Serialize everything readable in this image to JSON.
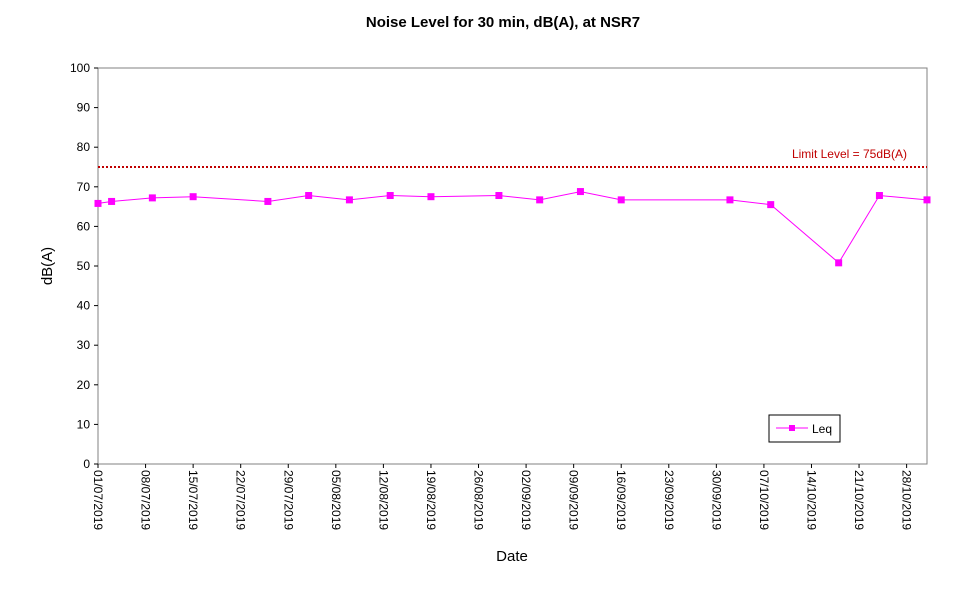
{
  "chart_data": {
    "type": "line",
    "title": "Noise Level for 30 min, dB(A), at NSR7",
    "xlabel": "Date",
    "ylabel": "dB(A)",
    "ylim": [
      0,
      100
    ],
    "yticks": [
      0,
      10,
      20,
      30,
      40,
      50,
      60,
      70,
      80,
      90,
      100
    ],
    "xlim": [
      "01/07/2019",
      "31/10/2019"
    ],
    "xticks": [
      "01/07/2019",
      "08/07/2019",
      "15/07/2019",
      "22/07/2019",
      "29/07/2019",
      "05/08/2019",
      "12/08/2019",
      "19/08/2019",
      "26/08/2019",
      "02/09/2019",
      "09/09/2019",
      "16/09/2019",
      "23/09/2019",
      "30/09/2019",
      "07/10/2019",
      "14/10/2019",
      "21/10/2019",
      "28/10/2019"
    ],
    "grid": false,
    "legend_position": "bottom-right",
    "series": [
      {
        "name": "Leq",
        "color": "#ff00ff",
        "marker": "square",
        "points": [
          {
            "x": "01/07/2019",
            "y": 65.8
          },
          {
            "x": "03/07/2019",
            "y": 66.3
          },
          {
            "x": "09/07/2019",
            "y": 67.2
          },
          {
            "x": "15/07/2019",
            "y": 67.5
          },
          {
            "x": "26/07/2019",
            "y": 66.3
          },
          {
            "x": "01/08/2019",
            "y": 67.8
          },
          {
            "x": "07/08/2019",
            "y": 66.7
          },
          {
            "x": "13/08/2019",
            "y": 67.8
          },
          {
            "x": "19/08/2019",
            "y": 67.5
          },
          {
            "x": "29/08/2019",
            "y": 67.8
          },
          {
            "x": "04/09/2019",
            "y": 66.7
          },
          {
            "x": "10/09/2019",
            "y": 68.8
          },
          {
            "x": "16/09/2019",
            "y": 66.7
          },
          {
            "x": "02/10/2019",
            "y": 66.7
          },
          {
            "x": "08/10/2019",
            "y": 65.5
          },
          {
            "x": "18/10/2019",
            "y": 50.8
          },
          {
            "x": "24/10/2019",
            "y": 67.8
          },
          {
            "x": "31/10/2019",
            "y": 66.7
          }
        ]
      }
    ],
    "limit_line": {
      "value": 75,
      "label": "Limit Level  = 75dB(A)",
      "color": "#c00000",
      "style": "dotted"
    }
  }
}
